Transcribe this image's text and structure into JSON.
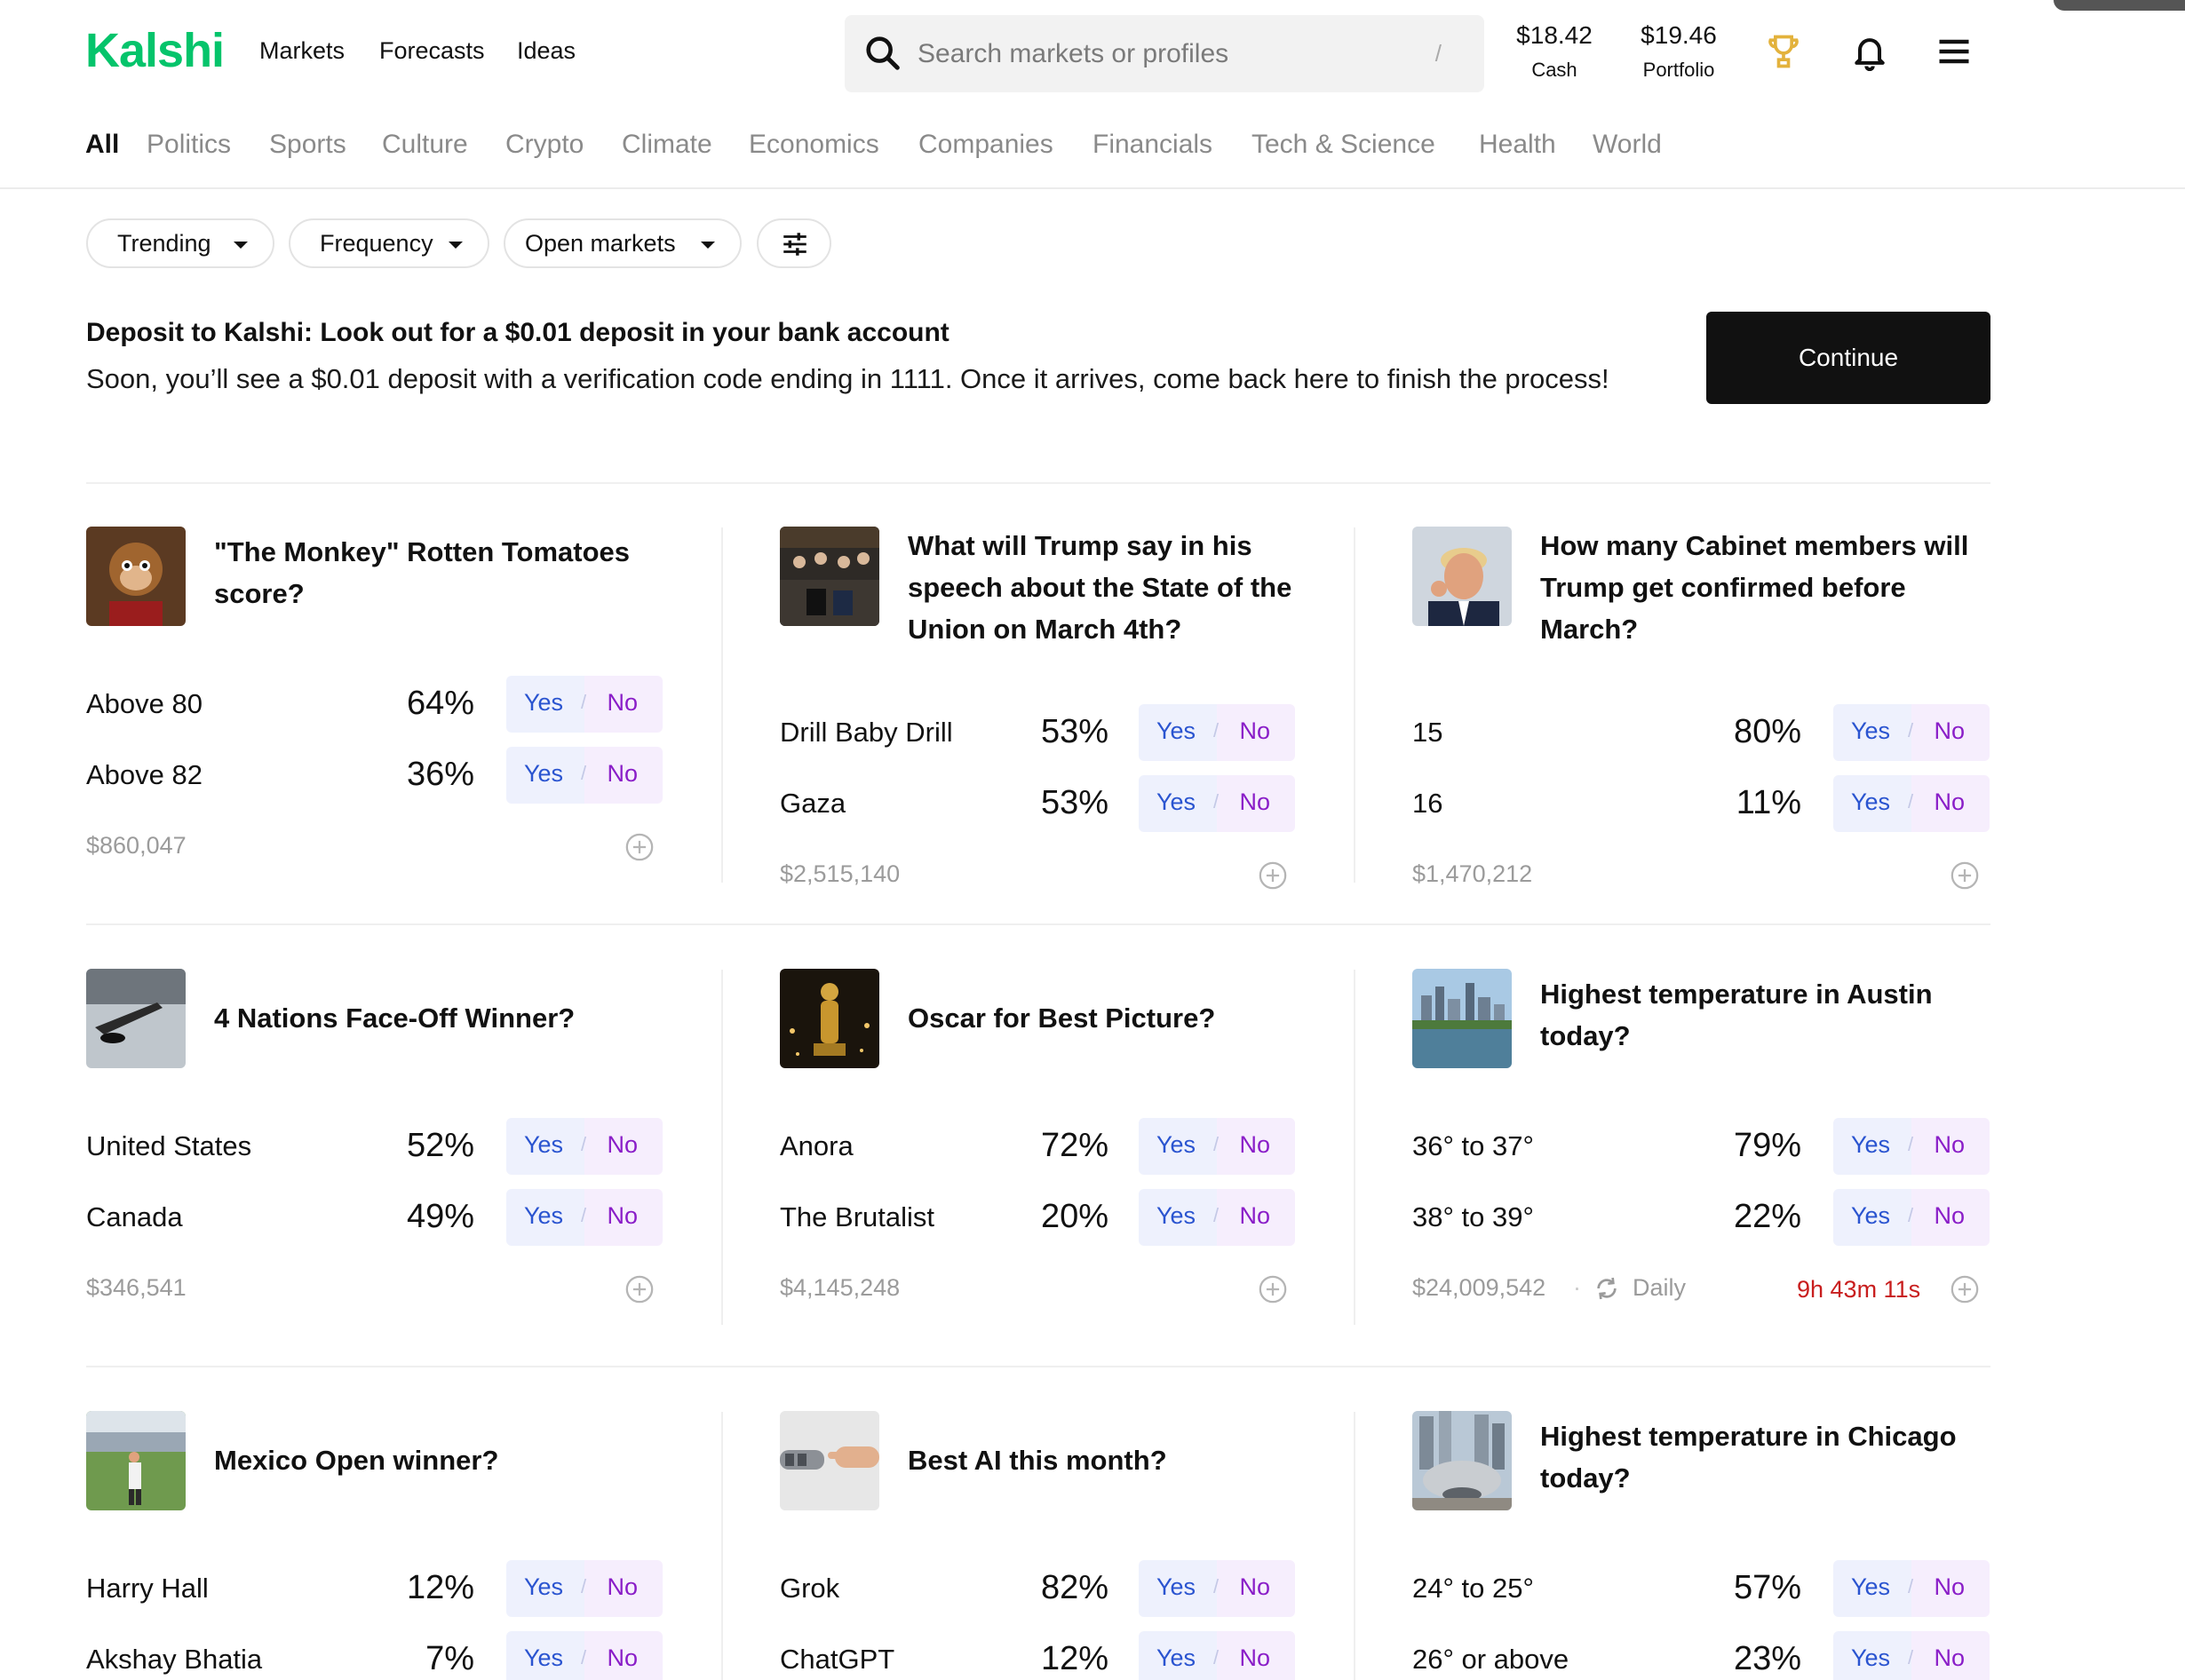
{
  "brand": {
    "logo": "Kalshi",
    "color": "#05c46b"
  },
  "nav": {
    "markets": "Markets",
    "forecasts": "Forecasts",
    "ideas": "Ideas"
  },
  "search": {
    "placeholder": "Search markets or profiles",
    "shortcut": "/"
  },
  "wallet": {
    "cash_amount": "$18.42",
    "cash_label": "Cash",
    "portfolio_amount": "$19.46",
    "portfolio_label": "Portfolio"
  },
  "categories": [
    "All",
    "Politics",
    "Sports",
    "Culture",
    "Crypto",
    "Climate",
    "Economics",
    "Companies",
    "Financials",
    "Tech & Science",
    "Health",
    "World"
  ],
  "filters": {
    "trending": "Trending",
    "frequency": "Frequency",
    "open_markets": "Open markets"
  },
  "banner": {
    "title": "Deposit to Kalshi: Look out for a $0.01 deposit in your bank account",
    "body": "Soon, you’ll see a $0.01 deposit with a verification code ending in 1111. Once it arrives, come back here to finish the process!",
    "button": "Continue"
  },
  "yes_label": "Yes",
  "no_label": "No",
  "markets": [
    {
      "title": "\"The Monkey\" Rotten Tomatoes score?",
      "outcomes": [
        {
          "name": "Above 80",
          "pct": "64%"
        },
        {
          "name": "Above 82",
          "pct": "36%"
        }
      ],
      "volume": "$860,047"
    },
    {
      "title": "What will Trump say in his speech about the State of the Union on March 4th?",
      "outcomes": [
        {
          "name": "Drill Baby Drill",
          "pct": "53%"
        },
        {
          "name": "Gaza",
          "pct": "53%"
        }
      ],
      "volume": "$2,515,140"
    },
    {
      "title": "How many Cabinet members will Trump get confirmed before March?",
      "outcomes": [
        {
          "name": "15",
          "pct": "80%"
        },
        {
          "name": "16",
          "pct": "11%"
        }
      ],
      "volume": "$1,470,212"
    },
    {
      "title": "4 Nations Face-Off Winner?",
      "outcomes": [
        {
          "name": "United States",
          "pct": "52%"
        },
        {
          "name": "Canada",
          "pct": "49%"
        }
      ],
      "volume": "$346,541"
    },
    {
      "title": "Oscar for Best Picture?",
      "outcomes": [
        {
          "name": "Anora",
          "pct": "72%"
        },
        {
          "name": "The Brutalist",
          "pct": "20%"
        }
      ],
      "volume": "$4,145,248"
    },
    {
      "title": "Highest temperature in Austin today?",
      "outcomes": [
        {
          "name": "36° to 37°",
          "pct": "79%"
        },
        {
          "name": "38° to 39°",
          "pct": "22%"
        }
      ],
      "volume": "$24,009,542",
      "frequency": "Daily",
      "timer": "9h 43m 11s"
    },
    {
      "title": "Mexico Open winner?",
      "outcomes": [
        {
          "name": "Harry Hall",
          "pct": "12%"
        },
        {
          "name": "Akshay Bhatia",
          "pct": "7%"
        }
      ]
    },
    {
      "title": "Best AI this month?",
      "outcomes": [
        {
          "name": "Grok",
          "pct": "82%"
        },
        {
          "name": "ChatGPT",
          "pct": "12%"
        }
      ]
    },
    {
      "title": "Highest temperature in Chicago today?",
      "outcomes": [
        {
          "name": "24° to 25°",
          "pct": "57%"
        },
        {
          "name": "26° or above",
          "pct": "23%"
        }
      ]
    }
  ],
  "colors": {
    "yes": "#2a54d0",
    "no": "#8a1ec8",
    "timer": "#c81e1e",
    "trophy": "#e3b23c"
  }
}
